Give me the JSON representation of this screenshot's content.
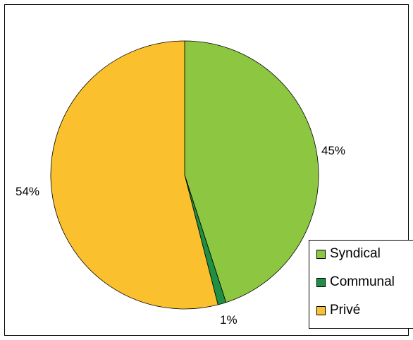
{
  "chart_data": {
    "type": "pie",
    "title": "",
    "categories": [
      "Syndical",
      "Communal",
      "Privé"
    ],
    "values": [
      45,
      1,
      54
    ],
    "labels": [
      "45%",
      "1%",
      "54%"
    ],
    "colors": [
      "#8DC641",
      "#1E8F44",
      "#FBC02D"
    ],
    "start_angle_deg": 0,
    "direction": "clockwise",
    "legend_position": "bottom-right"
  }
}
